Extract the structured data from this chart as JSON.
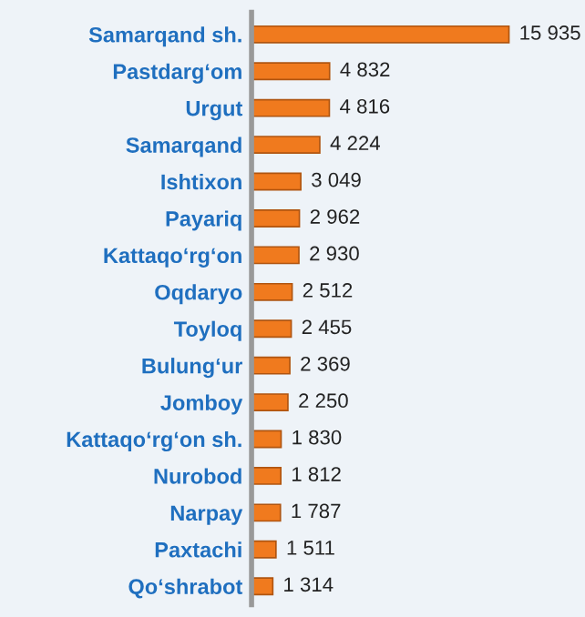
{
  "chart_data": {
    "type": "bar",
    "orientation": "horizontal",
    "categories": [
      "Samarqand sh.",
      "Pastdarg‘om",
      "Urgut",
      "Samarqand",
      "Ishtixon",
      "Payariq",
      "Kattaqo‘rg‘on",
      "Oqdaryo",
      "Toyloq",
      "Bulung‘ur",
      "Jomboy",
      "Kattaqo‘rg‘on sh.",
      "Nurobod",
      "Narpay",
      "Paxtachi",
      "Qo‘shrabot"
    ],
    "values": [
      15935,
      4832,
      4816,
      4224,
      3049,
      2962,
      2930,
      2512,
      2455,
      2369,
      2250,
      1830,
      1812,
      1787,
      1511,
      1314
    ],
    "value_labels": [
      "15 935",
      "4 832",
      "4 816",
      "4 224",
      "3 049",
      "2 962",
      "2 930",
      "2 512",
      "2 455",
      "2 369",
      "2 250",
      "1 830",
      "1 812",
      "1 787",
      "1 511",
      "1 314"
    ],
    "color": "#f07a1e",
    "tick_labels": "y",
    "grid": false,
    "legend": false
  }
}
